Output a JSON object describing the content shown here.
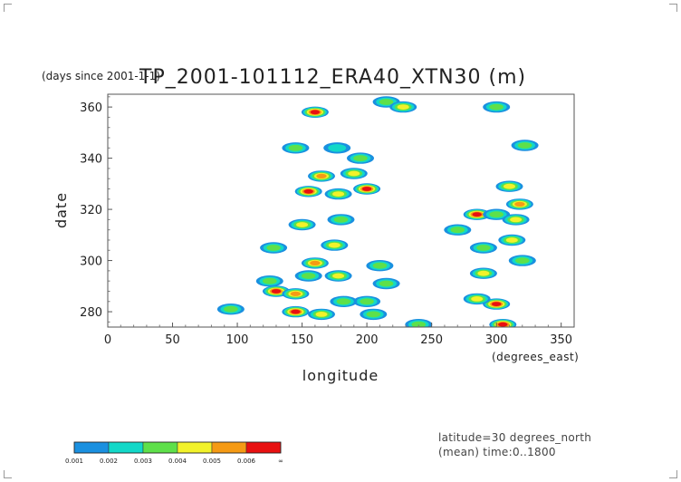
{
  "chart_data": {
    "type": "heatmap",
    "title": "TP_2001-101112_ERA40_XTN30 (m)",
    "time_units": "(days since 2001-1-1)",
    "xlabel": "longitude",
    "x_units": "(degrees_east)",
    "ylabel": "date",
    "xlim": [
      0,
      360
    ],
    "ylim": [
      274,
      365
    ],
    "x_ticks": [
      0,
      50,
      100,
      150,
      200,
      250,
      300,
      350
    ],
    "y_ticks": [
      280,
      300,
      320,
      340,
      360
    ],
    "grid": false,
    "contour_levels": [
      "0.001",
      "0.002",
      "0.003",
      "0.004",
      "0.005",
      "0.006",
      "∞"
    ],
    "colors": [
      "#1a90e0",
      "#12d8c8",
      "#5ee04a",
      "#f2f22a",
      "#f59a14",
      "#e81010"
    ],
    "annotations": [
      "latitude=30 degrees_north",
      "(mean) time:0..1800"
    ],
    "cells": [
      [
        160,
        358,
        6
      ],
      [
        215,
        362,
        3
      ],
      [
        228,
        360,
        4
      ],
      [
        300,
        360,
        3
      ],
      [
        322,
        345,
        3
      ],
      [
        145,
        344,
        3
      ],
      [
        177,
        344,
        2
      ],
      [
        195,
        340,
        3
      ],
      [
        165,
        333,
        5
      ],
      [
        190,
        334,
        4
      ],
      [
        155,
        327,
        6
      ],
      [
        178,
        326,
        4
      ],
      [
        200,
        328,
        6
      ],
      [
        310,
        329,
        4
      ],
      [
        318,
        322,
        5
      ],
      [
        285,
        318,
        6
      ],
      [
        300,
        318,
        3
      ],
      [
        315,
        316,
        4
      ],
      [
        312,
        308,
        4
      ],
      [
        180,
        316,
        3
      ],
      [
        150,
        314,
        4
      ],
      [
        128,
        305,
        3
      ],
      [
        175,
        306,
        4
      ],
      [
        290,
        305,
        3
      ],
      [
        320,
        300,
        3
      ],
      [
        160,
        299,
        5
      ],
      [
        210,
        298,
        3
      ],
      [
        178,
        294,
        4
      ],
      [
        155,
        294,
        3
      ],
      [
        130,
        288,
        6
      ],
      [
        145,
        287,
        5
      ],
      [
        215,
        291,
        3
      ],
      [
        200,
        284,
        3
      ],
      [
        145,
        280,
        6
      ],
      [
        165,
        279,
        4
      ],
      [
        205,
        279,
        3
      ],
      [
        300,
        283,
        6
      ],
      [
        285,
        285,
        4
      ],
      [
        290,
        295,
        4
      ],
      [
        305,
        275,
        6
      ],
      [
        95,
        281,
        3
      ],
      [
        240,
        275,
        3
      ],
      [
        182,
        284,
        3
      ],
      [
        125,
        292,
        3
      ],
      [
        270,
        312,
        3
      ]
    ]
  },
  "colorbar": {
    "tick_labels": [
      "0.001",
      "0.002",
      "0.003",
      "0.004",
      "0.005",
      "0.006",
      "∞"
    ]
  }
}
